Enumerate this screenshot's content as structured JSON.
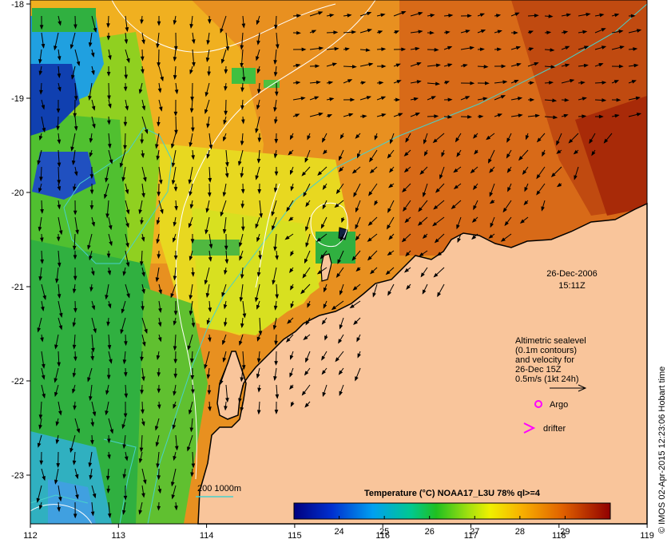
{
  "map": {
    "lon_ticks": [
      "112",
      "113",
      "114",
      "115",
      "116",
      "117",
      "118",
      "119"
    ],
    "lat_ticks": [
      "-18",
      "-19",
      "-20",
      "-21",
      "-22",
      "-23"
    ],
    "date": "26-Dec-2006",
    "time": "15:11Z",
    "legend": {
      "sealevel_lines": [
        "Altimetric sealevel",
        "(0.1m contours)",
        "and velocity for",
        "26-Dec 15Z",
        "0.5m/s (1kt 24h)"
      ],
      "argo_label": "Argo",
      "drifter_label": "drifter"
    },
    "isobath_label": "200  1000m",
    "colorbar": {
      "title": "Temperature (°C) NOAA17_L3U 78% ql>=4",
      "ticks": [
        "24",
        "25",
        "26",
        "27",
        "28",
        "29"
      ],
      "range": [
        23,
        30
      ]
    },
    "credit": "© IMOS 02-Apr-2015 12:23:06 Hobart time",
    "colors": {
      "land": "#f9c59b",
      "isobath": "#48d1cc",
      "contour": "#ffffff",
      "argo": "#ff00ff",
      "drifter": "#ff00ff"
    }
  }
}
